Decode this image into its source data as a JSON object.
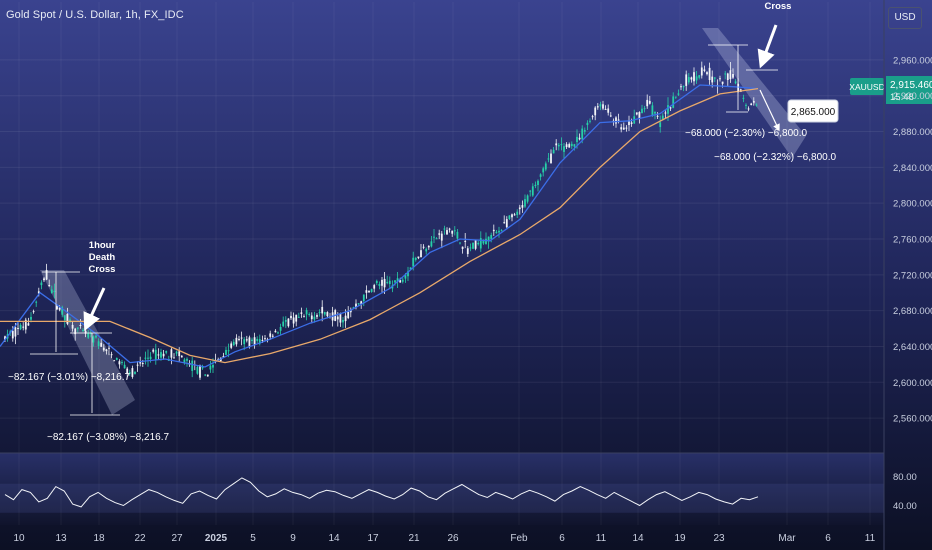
{
  "chart_data": {
    "type": "candlestick",
    "title": "Gold Spot / U.S. Dollar, 1h, FX_IDC",
    "currency": "USD",
    "symbol": "XAUUSD",
    "last_price": "2,915.460",
    "countdown": "15:48",
    "colors": {
      "up": "#26d0a8",
      "down": "#f2f4f8",
      "ma_fast": "#3b6ee8",
      "ma_slow": "#e8a86a",
      "rsi": "#f2f4f8",
      "accent": "#1a9e8a"
    },
    "y_axis": {
      "min": 2540,
      "max": 2980,
      "ticks": [
        "2,960.000",
        "2,920.000",
        "2,880.000",
        "2,840.000",
        "2,800.000",
        "2,760.000",
        "2,720.000",
        "2,680.000",
        "2,640.000",
        "2,600.000",
        "2,560.000"
      ]
    },
    "rsi_axis": {
      "ticks": [
        "80.00",
        "40.00"
      ]
    },
    "x_labels": [
      "10",
      "13",
      "18",
      "22",
      "27",
      "2025",
      "5",
      "9",
      "14",
      "17",
      "21",
      "26",
      "Feb",
      "6",
      "11",
      "14",
      "19",
      "23",
      "Mar",
      "6",
      "11"
    ],
    "price_path": [
      {
        "x": 0,
        "y": 2645
      },
      {
        "x": 30,
        "y": 2668
      },
      {
        "x": 46,
        "y": 2722
      },
      {
        "x": 58,
        "y": 2685
      },
      {
        "x": 75,
        "y": 2660
      },
      {
        "x": 95,
        "y": 2648
      },
      {
        "x": 115,
        "y": 2626
      },
      {
        "x": 133,
        "y": 2610
      },
      {
        "x": 150,
        "y": 2630
      },
      {
        "x": 175,
        "y": 2632
      },
      {
        "x": 205,
        "y": 2608
      },
      {
        "x": 235,
        "y": 2645
      },
      {
        "x": 262,
        "y": 2646
      },
      {
        "x": 290,
        "y": 2668
      },
      {
        "x": 320,
        "y": 2678
      },
      {
        "x": 345,
        "y": 2672
      },
      {
        "x": 375,
        "y": 2708
      },
      {
        "x": 400,
        "y": 2712
      },
      {
        "x": 425,
        "y": 2752
      },
      {
        "x": 450,
        "y": 2772
      },
      {
        "x": 468,
        "y": 2748
      },
      {
        "x": 490,
        "y": 2762
      },
      {
        "x": 520,
        "y": 2790
      },
      {
        "x": 555,
        "y": 2860
      },
      {
        "x": 578,
        "y": 2868
      },
      {
        "x": 600,
        "y": 2912
      },
      {
        "x": 625,
        "y": 2880
      },
      {
        "x": 648,
        "y": 2913
      },
      {
        "x": 660,
        "y": 2890
      },
      {
        "x": 685,
        "y": 2935
      },
      {
        "x": 705,
        "y": 2950
      },
      {
        "x": 718,
        "y": 2932
      },
      {
        "x": 732,
        "y": 2945
      },
      {
        "x": 748,
        "y": 2908
      },
      {
        "x": 758,
        "y": 2915
      }
    ],
    "ma_fast": [
      {
        "x": 0,
        "y": 2640
      },
      {
        "x": 40,
        "y": 2700
      },
      {
        "x": 65,
        "y": 2680
      },
      {
        "x": 95,
        "y": 2655
      },
      {
        "x": 130,
        "y": 2622
      },
      {
        "x": 165,
        "y": 2626
      },
      {
        "x": 205,
        "y": 2617
      },
      {
        "x": 235,
        "y": 2634
      },
      {
        "x": 270,
        "y": 2648
      },
      {
        "x": 310,
        "y": 2666
      },
      {
        "x": 350,
        "y": 2680
      },
      {
        "x": 390,
        "y": 2705
      },
      {
        "x": 430,
        "y": 2745
      },
      {
        "x": 460,
        "y": 2760
      },
      {
        "x": 490,
        "y": 2758
      },
      {
        "x": 520,
        "y": 2782
      },
      {
        "x": 560,
        "y": 2845
      },
      {
        "x": 600,
        "y": 2890
      },
      {
        "x": 630,
        "y": 2892
      },
      {
        "x": 660,
        "y": 2900
      },
      {
        "x": 700,
        "y": 2932
      },
      {
        "x": 735,
        "y": 2930
      },
      {
        "x": 758,
        "y": 2928
      }
    ],
    "ma_slow": [
      {
        "x": 0,
        "y": 2668
      },
      {
        "x": 60,
        "y": 2668
      },
      {
        "x": 110,
        "y": 2668
      },
      {
        "x": 150,
        "y": 2650
      },
      {
        "x": 190,
        "y": 2630
      },
      {
        "x": 225,
        "y": 2622
      },
      {
        "x": 270,
        "y": 2632
      },
      {
        "x": 320,
        "y": 2648
      },
      {
        "x": 370,
        "y": 2670
      },
      {
        "x": 420,
        "y": 2700
      },
      {
        "x": 470,
        "y": 2735
      },
      {
        "x": 520,
        "y": 2765
      },
      {
        "x": 560,
        "y": 2795
      },
      {
        "x": 600,
        "y": 2840
      },
      {
        "x": 640,
        "y": 2880
      },
      {
        "x": 680,
        "y": 2903
      },
      {
        "x": 720,
        "y": 2922
      },
      {
        "x": 758,
        "y": 2928
      }
    ],
    "rsi_values": [
      55,
      48,
      62,
      58,
      45,
      50,
      66,
      60,
      42,
      38,
      52,
      58,
      50,
      44,
      40,
      48,
      55,
      62,
      58,
      52,
      47,
      43,
      56,
      60,
      54,
      49,
      62,
      70,
      78,
      72,
      60,
      52,
      56,
      63,
      58,
      55,
      50,
      57,
      61,
      59,
      54,
      50,
      56,
      62,
      58,
      53,
      49,
      55,
      64,
      60,
      52,
      48,
      57,
      63,
      69,
      62,
      55,
      51,
      58,
      54,
      49,
      56,
      61,
      57,
      52,
      46,
      55,
      60,
      66,
      61,
      55,
      50,
      58,
      52,
      46,
      40,
      48,
      55,
      59,
      53,
      47,
      52,
      58,
      55,
      49,
      45,
      42,
      50,
      48,
      52
    ],
    "annotations": [
      {
        "name": "death-cross-label",
        "text": "1hour\nDeath\nCross"
      },
      {
        "name": "measure-1",
        "text": "−82.167 (−3.01%) −8,216.7"
      },
      {
        "name": "measure-2",
        "text": "−82.167 (−3.08%) −8,216.7"
      },
      {
        "name": "cross-label",
        "text": "Cross"
      },
      {
        "name": "measure-3",
        "text": "−68.000 (−2.30%) −6,800.0"
      },
      {
        "name": "measure-4",
        "text": "−68.000 (−2.32%) −6,800.0"
      },
      {
        "name": "target-label",
        "text": "2,865.000"
      }
    ]
  }
}
